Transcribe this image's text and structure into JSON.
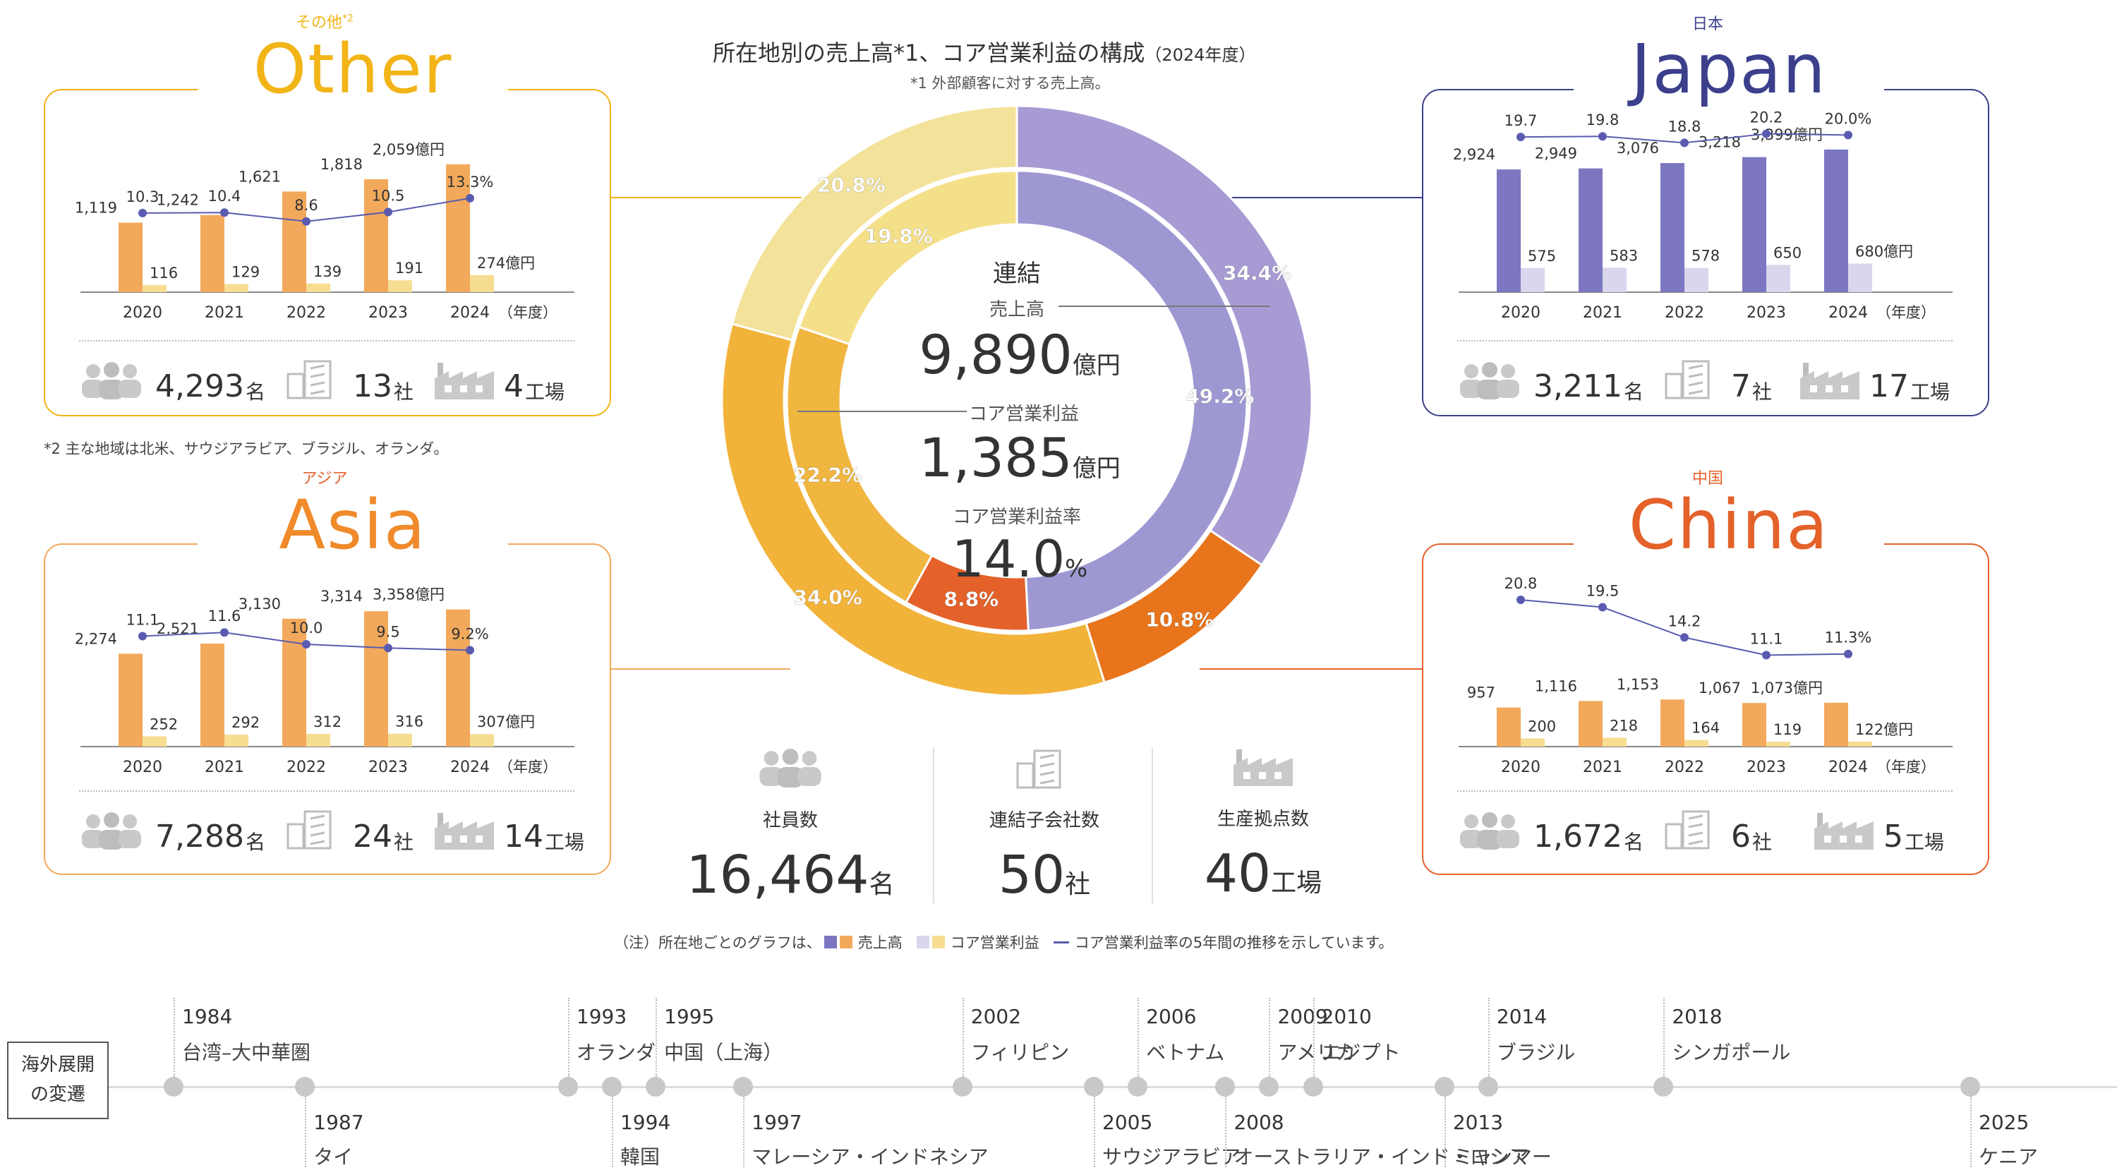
{
  "title": "所在地別の売上高*1、コア営業利益の構成",
  "title_year": "（2024年度）",
  "footnote1": "*1 外部顧客に対する売上高。",
  "footnote2": "*2 主な地域は北米、サウジアラビア、ブラジル、オランダ。",
  "note": "（注）所在地ごとのグラフは、",
  "legend": {
    "sales": "売上高",
    "profit": "コア営業利益",
    "margin": "コア営業利益率の5年間の推移を示しています。"
  },
  "colors": {
    "japan": "#7c77c0",
    "japan_light": "#d9d6ee",
    "asia": "#f2a95c",
    "asia_light": "#f7dd92",
    "china": "#e4612a",
    "other": "#f2b417",
    "line": "#5a5bb0"
  },
  "center": {
    "label": "連結",
    "sales_label": "売上高",
    "sales_value": "9,890",
    "sales_unit": "億円",
    "profit_label": "コア営業利益",
    "profit_value": "1,385",
    "profit_unit": "億円",
    "margin_label": "コア営業利益率",
    "margin_value": "14.0",
    "margin_unit": "%"
  },
  "totals": [
    {
      "label": "社員数",
      "value": "16,464",
      "unit": "名"
    },
    {
      "label": "連結子会社数",
      "value": "50",
      "unit": "社"
    },
    {
      "label": "生産拠点数",
      "value": "40",
      "unit": "工場"
    }
  ],
  "chart_data": [
    {
      "type": "donut",
      "name": "売上高",
      "ring": "outer",
      "series": [
        {
          "name": "Japan",
          "value": 34.4,
          "label": "34.4%"
        },
        {
          "name": "China",
          "value": 10.8,
          "label": "10.8%"
        },
        {
          "name": "Asia",
          "value": 34.0,
          "label": "34.0%"
        },
        {
          "name": "Other",
          "value": 20.8,
          "label": "20.8%"
        }
      ]
    },
    {
      "type": "donut",
      "name": "コア営業利益",
      "ring": "inner",
      "series": [
        {
          "name": "Japan",
          "value": 49.2,
          "label": "49.2%"
        },
        {
          "name": "China",
          "value": 8.8,
          "label": "8.8%"
        },
        {
          "name": "Asia",
          "value": 22.2,
          "label": "22.2%"
        },
        {
          "name": "Other",
          "value": 19.8,
          "label": "19.8%"
        }
      ]
    },
    {
      "type": "bar",
      "region": "Other",
      "region_jp": "その他",
      "region_sup": "*2",
      "categories": [
        "2020",
        "2021",
        "2022",
        "2023",
        "2024"
      ],
      "x_suffix": "（年度）",
      "sales": [
        1119,
        1242,
        1621,
        1818,
        2059
      ],
      "sales_labels": [
        "1,119",
        "1,242",
        "1,621",
        "1,818",
        "2,059億円"
      ],
      "profit": [
        116,
        129,
        139,
        191,
        274
      ],
      "profit_labels": [
        "116",
        "129",
        "139",
        "191",
        "274億円"
      ],
      "margin": [
        10.3,
        10.4,
        8.6,
        10.5,
        13.3
      ],
      "margin_labels": [
        "10.3",
        "10.4",
        "8.6",
        "10.5",
        "13.3%"
      ],
      "ymax": 2500,
      "margin_range": [
        0,
        30
      ],
      "stats": {
        "employees": "4,293",
        "employees_unit": "名",
        "companies": "13",
        "companies_unit": "社",
        "factories": "4",
        "factories_unit": "工場"
      }
    },
    {
      "type": "bar",
      "region": "Japan",
      "region_jp": "日本",
      "region_sup": "",
      "categories": [
        "2020",
        "2021",
        "2022",
        "2023",
        "2024"
      ],
      "x_suffix": "（年度）",
      "sales": [
        2924,
        2949,
        3076,
        3218,
        3399
      ],
      "sales_labels": [
        "2,924",
        "2,949",
        "3,076",
        "3,218",
        "3,399億円"
      ],
      "profit": [
        575,
        583,
        578,
        650,
        680
      ],
      "profit_labels": [
        "575",
        "583",
        "578",
        "650",
        "680億円"
      ],
      "margin": [
        19.7,
        19.8,
        18.8,
        20.2,
        20.0
      ],
      "margin_labels": [
        "19.7",
        "19.8",
        "18.8",
        "20.2",
        "20.0%"
      ],
      "ymax": 3700,
      "margin_range": [
        0,
        23
      ],
      "stats": {
        "employees": "3,211",
        "employees_unit": "名",
        "companies": "7",
        "companies_unit": "社",
        "factories": "17",
        "factories_unit": "工場"
      }
    },
    {
      "type": "bar",
      "region": "Asia",
      "region_jp": "アジア",
      "region_sup": "",
      "categories": [
        "2020",
        "2021",
        "2022",
        "2023",
        "2024"
      ],
      "x_suffix": "（年度）",
      "sales": [
        2274,
        2521,
        3130,
        3314,
        3358
      ],
      "sales_labels": [
        "2,274",
        "2,521",
        "3,130",
        "3,314",
        "3,358億円"
      ],
      "profit": [
        252,
        292,
        312,
        316,
        307
      ],
      "profit_labels": [
        "252",
        "292",
        "312",
        "316",
        "307億円"
      ],
      "margin": [
        11.1,
        11.6,
        10.0,
        9.5,
        9.2
      ],
      "margin_labels": [
        "11.1",
        "11.6",
        "10.0",
        "9.5",
        "9.2%"
      ],
      "ymax": 3800,
      "margin_range": [
        0,
        20
      ],
      "stats": {
        "employees": "7,288",
        "employees_unit": "名",
        "companies": "24",
        "companies_unit": "社",
        "factories": "14",
        "factories_unit": "工場"
      }
    },
    {
      "type": "bar",
      "region": "China",
      "region_jp": "中国",
      "region_sup": "",
      "categories": [
        "2020",
        "2021",
        "2022",
        "2023",
        "2024"
      ],
      "x_suffix": "（年度）",
      "sales": [
        957,
        1116,
        1153,
        1067,
        1073
      ],
      "sales_labels": [
        "957",
        "1,116",
        "1,153",
        "1,067",
        "1,073億円"
      ],
      "profit": [
        200,
        218,
        164,
        119,
        122
      ],
      "profit_labels": [
        "200",
        "218",
        "164",
        "119",
        "122億円"
      ],
      "margin": [
        20.8,
        19.5,
        14.2,
        11.1,
        11.3
      ],
      "margin_labels": [
        "20.8",
        "19.5",
        "14.2",
        "11.1",
        "11.3%"
      ],
      "ymax": 3800,
      "margin_range": [
        0,
        26
      ],
      "stats": {
        "employees": "1,672",
        "employees_unit": "名",
        "companies": "6",
        "companies_unit": "社",
        "factories": "5",
        "factories_unit": "工場"
      }
    }
  ],
  "timeline": {
    "label": "海外展開の変遷",
    "events": [
      {
        "year": "1984",
        "place": "台湾–大中華圏",
        "pos": "top"
      },
      {
        "year": "1987",
        "place": "タイ",
        "pos": "bottom"
      },
      {
        "year": "1993",
        "place": "オランダ",
        "pos": "top"
      },
      {
        "year": "1994",
        "place": "韓国",
        "pos": "bottom"
      },
      {
        "year": "1995",
        "place": "中国（上海）",
        "pos": "top"
      },
      {
        "year": "1997",
        "place": "マレーシア・インドネシア",
        "pos": "bottom"
      },
      {
        "year": "2002",
        "place": "フィリピン",
        "pos": "top"
      },
      {
        "year": "2005",
        "place": "サウジアラビア",
        "pos": "bottom"
      },
      {
        "year": "2006",
        "place": "ベトナム",
        "pos": "top"
      },
      {
        "year": "2008",
        "place": "オーストラリア・インド・ロシア",
        "pos": "bottom"
      },
      {
        "year": "2009",
        "place": "アメリカ",
        "pos": "top"
      },
      {
        "year": "2010",
        "place": "エジプト",
        "pos": "top"
      },
      {
        "year": "2013",
        "place": "ミャンマー",
        "pos": "bottom"
      },
      {
        "year": "2014",
        "place": "ブラジル",
        "pos": "top"
      },
      {
        "year": "2018",
        "place": "シンガポール",
        "pos": "top"
      },
      {
        "year": "2025",
        "place": "ケニア",
        "pos": "bottom"
      }
    ]
  }
}
